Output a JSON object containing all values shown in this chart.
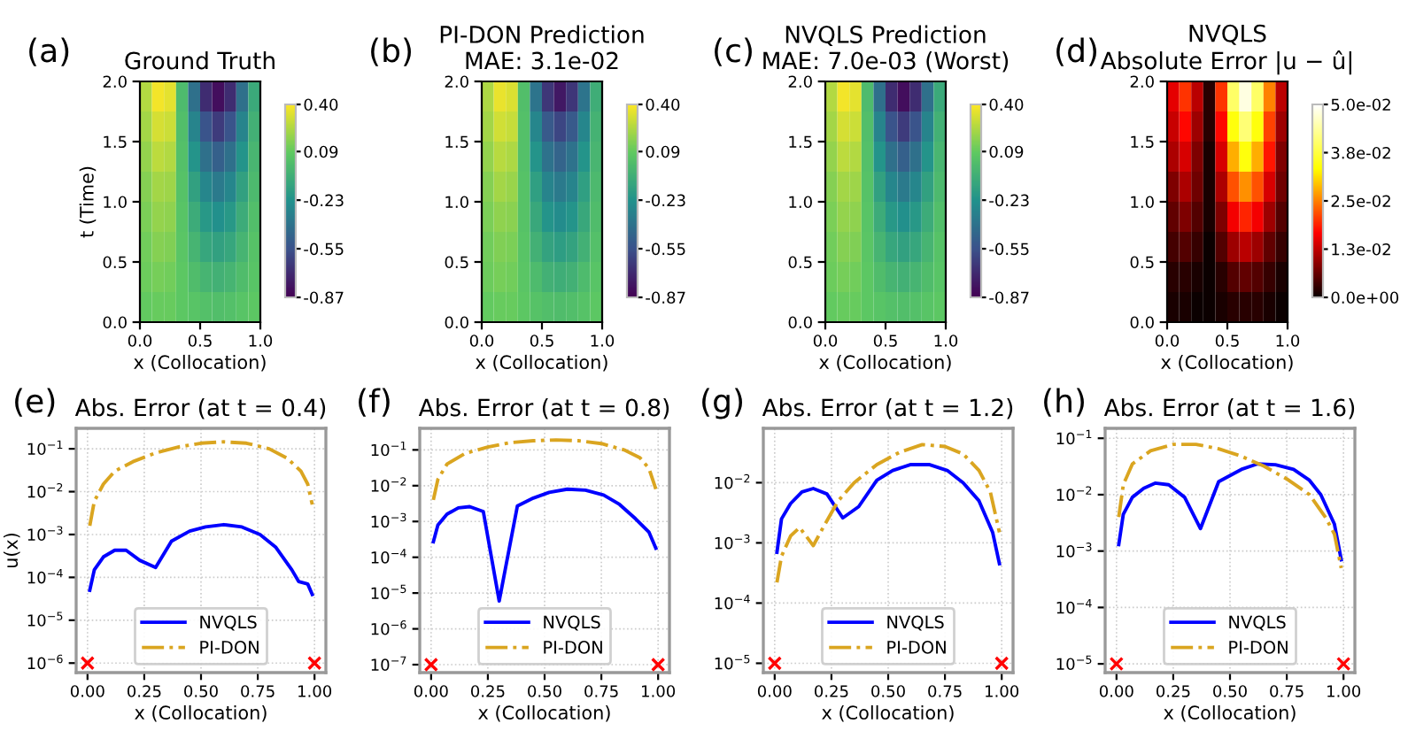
{
  "chart_data": [
    {
      "type": "heatmap",
      "title": "Ground Truth",
      "xlabel": "x (Collocation)",
      "ylabel": "t (Time)",
      "annotations": [
        "(a)"
      ],
      "colors": [
        "#440154",
        "#3b528b",
        "#21918c",
        "#5ec962",
        "#fde725"
      ],
      "x": [
        0.05,
        0.15,
        0.25,
        0.35,
        0.45,
        0.55,
        0.65,
        0.75,
        0.85,
        0.95
      ],
      "y": [
        1.875,
        1.625,
        1.375,
        1.125,
        0.875,
        0.625,
        0.375,
        0.125
      ],
      "cells": [
        [
          0.25,
          0.38,
          0.35,
          0.0,
          -0.4,
          -0.7,
          -0.82,
          -0.7,
          -0.4,
          -0.1
        ],
        [
          0.22,
          0.32,
          0.3,
          0.02,
          -0.3,
          -0.54,
          -0.64,
          -0.54,
          -0.3,
          -0.06
        ],
        [
          0.19,
          0.27,
          0.25,
          0.03,
          -0.22,
          -0.4,
          -0.48,
          -0.4,
          -0.22,
          -0.03
        ],
        [
          0.16,
          0.22,
          0.21,
          0.04,
          -0.15,
          -0.29,
          -0.35,
          -0.29,
          -0.15,
          -0.01
        ],
        [
          0.14,
          0.19,
          0.18,
          0.05,
          -0.09,
          -0.2,
          -0.24,
          -0.2,
          -0.09,
          0.02
        ],
        [
          0.12,
          0.16,
          0.15,
          0.06,
          -0.04,
          -0.12,
          -0.15,
          -0.12,
          -0.04,
          0.04
        ],
        [
          0.11,
          0.13,
          0.12,
          0.07,
          0.01,
          -0.04,
          -0.06,
          -0.04,
          0.01,
          0.05
        ],
        [
          0.09,
          0.1,
          0.1,
          0.07,
          0.05,
          0.03,
          0.02,
          0.03,
          0.05,
          0.07
        ]
      ],
      "xlim": [
        0,
        1
      ],
      "xticks": [
        {
          "value": 0,
          "label": "0.0"
        },
        {
          "value": 0.5,
          "label": "0.5"
        },
        {
          "value": 1,
          "label": "1.0"
        }
      ],
      "ylim": [
        0,
        2
      ],
      "yticks": [
        {
          "value": 0,
          "label": "0.0"
        },
        {
          "value": 0.5,
          "label": "0.5"
        },
        {
          "value": 1,
          "label": "1.0"
        },
        {
          "value": 1.5,
          "label": "1.5"
        },
        {
          "value": 2,
          "label": "2.0"
        }
      ],
      "clim": [
        -0.87,
        0.4
      ],
      "cticks": [
        {
          "value": -0.87,
          "label": "-0.87"
        },
        {
          "value": -0.55,
          "label": "-0.55"
        },
        {
          "value": -0.23,
          "label": "-0.23"
        },
        {
          "value": 0.09,
          "label": "0.09"
        },
        {
          "value": 0.4,
          "label": "0.40"
        }
      ]
    },
    {
      "type": "heatmap",
      "title": "PI-DON Prediction\nMAE: 3.1e-02",
      "xlabel": "x (Collocation)",
      "annotations": [
        "(b)"
      ],
      "colors": [
        "#440154",
        "#3b528b",
        "#21918c",
        "#5ec962",
        "#fde725"
      ],
      "x": [
        0.05,
        0.15,
        0.25,
        0.35,
        0.45,
        0.55,
        0.65,
        0.75,
        0.85,
        0.95
      ],
      "y": [
        1.875,
        1.625,
        1.375,
        1.125,
        0.875,
        0.625,
        0.375,
        0.125
      ],
      "cells": [
        [
          0.24,
          0.36,
          0.33,
          0.02,
          -0.38,
          -0.66,
          -0.78,
          -0.66,
          -0.38,
          -0.08
        ],
        [
          0.22,
          0.31,
          0.29,
          0.03,
          -0.29,
          -0.51,
          -0.6,
          -0.51,
          -0.29,
          -0.05
        ],
        [
          0.19,
          0.26,
          0.24,
          0.03,
          -0.22,
          -0.39,
          -0.46,
          -0.39,
          -0.22,
          -0.03
        ],
        [
          0.16,
          0.22,
          0.2,
          0.04,
          -0.16,
          -0.3,
          -0.35,
          -0.3,
          -0.16,
          -0.01
        ],
        [
          0.14,
          0.18,
          0.17,
          0.04,
          -0.11,
          -0.22,
          -0.26,
          -0.22,
          -0.11,
          0.01
        ],
        [
          0.12,
          0.15,
          0.14,
          0.05,
          -0.06,
          -0.14,
          -0.17,
          -0.14,
          -0.06,
          0.03
        ],
        [
          0.11,
          0.13,
          0.12,
          0.06,
          0.0,
          -0.06,
          -0.08,
          -0.06,
          0.0,
          0.05
        ],
        [
          0.09,
          0.1,
          0.1,
          0.07,
          0.04,
          0.02,
          0.01,
          0.02,
          0.04,
          0.07
        ]
      ],
      "xlim": [
        0,
        1
      ],
      "xticks": [
        {
          "value": 0,
          "label": "0.0"
        },
        {
          "value": 0.5,
          "label": "0.5"
        },
        {
          "value": 1,
          "label": "1.0"
        }
      ],
      "ylim": [
        0,
        2
      ],
      "yticks": [
        {
          "value": 0,
          "label": "0.0"
        },
        {
          "value": 0.5,
          "label": "0.5"
        },
        {
          "value": 1,
          "label": "1.0"
        },
        {
          "value": 1.5,
          "label": "1.5"
        },
        {
          "value": 2,
          "label": "2.0"
        }
      ],
      "clim": [
        -0.87,
        0.4
      ],
      "cticks": [
        {
          "value": -0.87,
          "label": "-0.87"
        },
        {
          "value": -0.55,
          "label": "-0.55"
        },
        {
          "value": -0.23,
          "label": "-0.23"
        },
        {
          "value": 0.09,
          "label": "0.09"
        },
        {
          "value": 0.4,
          "label": "0.40"
        }
      ]
    },
    {
      "type": "heatmap",
      "title": "NVQLS Prediction\nMAE: 7.0e-03 (Worst)",
      "xlabel": "x (Collocation)",
      "annotations": [
        "(c)"
      ],
      "colors": [
        "#440154",
        "#3b528b",
        "#21918c",
        "#5ec962",
        "#fde725"
      ],
      "x": [
        0.05,
        0.15,
        0.25,
        0.35,
        0.45,
        0.55,
        0.65,
        0.75,
        0.85,
        0.95
      ],
      "y": [
        1.875,
        1.625,
        1.375,
        1.125,
        0.875,
        0.625,
        0.375,
        0.125
      ],
      "cells": [
        [
          0.25,
          0.38,
          0.35,
          0.0,
          -0.4,
          -0.7,
          -0.82,
          -0.7,
          -0.4,
          -0.1
        ],
        [
          0.22,
          0.32,
          0.3,
          0.02,
          -0.3,
          -0.54,
          -0.64,
          -0.54,
          -0.3,
          -0.06
        ],
        [
          0.19,
          0.27,
          0.25,
          0.03,
          -0.22,
          -0.4,
          -0.48,
          -0.4,
          -0.22,
          -0.03
        ],
        [
          0.16,
          0.22,
          0.21,
          0.04,
          -0.15,
          -0.29,
          -0.35,
          -0.29,
          -0.15,
          -0.01
        ],
        [
          0.14,
          0.19,
          0.18,
          0.05,
          -0.09,
          -0.2,
          -0.24,
          -0.2,
          -0.09,
          0.02
        ],
        [
          0.12,
          0.16,
          0.15,
          0.06,
          -0.04,
          -0.12,
          -0.15,
          -0.12,
          -0.04,
          0.04
        ],
        [
          0.11,
          0.13,
          0.12,
          0.07,
          0.01,
          -0.04,
          -0.06,
          -0.04,
          0.01,
          0.05
        ],
        [
          0.09,
          0.1,
          0.1,
          0.07,
          0.05,
          0.03,
          0.02,
          0.03,
          0.05,
          0.07
        ]
      ],
      "xlim": [
        0,
        1
      ],
      "xticks": [
        {
          "value": 0,
          "label": "0.0"
        },
        {
          "value": 0.5,
          "label": "0.5"
        },
        {
          "value": 1,
          "label": "1.0"
        }
      ],
      "ylim": [
        0,
        2
      ],
      "yticks": [
        {
          "value": 0,
          "label": "0.0"
        },
        {
          "value": 0.5,
          "label": "0.5"
        },
        {
          "value": 1,
          "label": "1.0"
        },
        {
          "value": 1.5,
          "label": "1.5"
        },
        {
          "value": 2,
          "label": "2.0"
        }
      ],
      "clim": [
        -0.87,
        0.4
      ],
      "cticks": [
        {
          "value": -0.87,
          "label": "-0.87"
        },
        {
          "value": -0.55,
          "label": "-0.55"
        },
        {
          "value": -0.23,
          "label": "-0.23"
        },
        {
          "value": 0.09,
          "label": "0.09"
        },
        {
          "value": 0.4,
          "label": "0.40"
        }
      ]
    },
    {
      "type": "heatmap",
      "title": "NVQLS\nAbsolute Error |u − û|",
      "xlabel": "x (Collocation)",
      "annotations": [
        "(d)"
      ],
      "colors": [
        "#0b0000",
        "#ff0000",
        "#ffff00",
        "#ffffff"
      ],
      "x": [
        0.05,
        0.15,
        0.25,
        0.35,
        0.45,
        0.55,
        0.65,
        0.75,
        0.85,
        0.95
      ],
      "y": [
        1.875,
        1.625,
        1.375,
        1.125,
        0.875,
        0.625,
        0.375,
        0.125
      ],
      "cells": [
        [
          0.015,
          0.02,
          0.012,
          0.002,
          0.02,
          0.04,
          0.048,
          0.04,
          0.025,
          0.012
        ],
        [
          0.013,
          0.017,
          0.01,
          0.002,
          0.017,
          0.034,
          0.041,
          0.034,
          0.021,
          0.01
        ],
        [
          0.011,
          0.014,
          0.008,
          0.001,
          0.014,
          0.028,
          0.034,
          0.028,
          0.018,
          0.008
        ],
        [
          0.008,
          0.011,
          0.007,
          0.001,
          0.011,
          0.022,
          0.026,
          0.022,
          0.014,
          0.007
        ],
        [
          0.006,
          0.008,
          0.005,
          0.001,
          0.008,
          0.016,
          0.019,
          0.016,
          0.01,
          0.005
        ],
        [
          0.004,
          0.005,
          0.003,
          0.0,
          0.005,
          0.01,
          0.012,
          0.01,
          0.006,
          0.003
        ],
        [
          0.002,
          0.002,
          0.001,
          0.0,
          0.002,
          0.005,
          0.006,
          0.005,
          0.003,
          0.001
        ],
        [
          0.001,
          0.001,
          0.0,
          0.0,
          0.001,
          0.002,
          0.002,
          0.002,
          0.001,
          0.0
        ]
      ],
      "xlim": [
        0,
        1
      ],
      "xticks": [
        {
          "value": 0,
          "label": "0.0"
        },
        {
          "value": 0.5,
          "label": "0.5"
        },
        {
          "value": 1,
          "label": "1.0"
        }
      ],
      "ylim": [
        0,
        2
      ],
      "yticks": [
        {
          "value": 0,
          "label": "0.0"
        },
        {
          "value": 0.5,
          "label": "0.5"
        },
        {
          "value": 1,
          "label": "1.0"
        },
        {
          "value": 1.5,
          "label": "1.5"
        },
        {
          "value": 2,
          "label": "2.0"
        }
      ],
      "clim": [
        0,
        0.05
      ],
      "cticks": [
        {
          "value": 0,
          "label": "0.0e+00"
        },
        {
          "value": 0.0125,
          "label": "1.3e-02"
        },
        {
          "value": 0.025,
          "label": "2.5e-02"
        },
        {
          "value": 0.0375,
          "label": "3.8e-02"
        },
        {
          "value": 0.05,
          "label": "5.0e-02"
        }
      ]
    },
    {
      "type": "line",
      "title": "Abs. Error (at t = 0.4)",
      "xlabel": "x (Collocation)",
      "ylabel": "u(x)",
      "annotations": [
        "(e)"
      ],
      "log": "y",
      "grid": true,
      "legend": "bottom",
      "xlim": [
        -0.05,
        1.05
      ],
      "xticks": [
        {
          "value": 0,
          "label": "0.00"
        },
        {
          "value": 0.25,
          "label": "0.25"
        },
        {
          "value": 0.5,
          "label": "0.50"
        },
        {
          "value": 0.75,
          "label": "0.75"
        },
        {
          "value": 1,
          "label": "1.00"
        }
      ],
      "ylim": [
        6e-07,
        0.3
      ],
      "yticks": [
        {
          "value": 1e-06,
          "label": "10$^{−6}$"
        },
        {
          "value": 1e-05,
          "label": "10$^{−5}$"
        },
        {
          "value": 0.0001,
          "label": "10$^{−4}$"
        },
        {
          "value": 0.001,
          "label": "10$^{−3}$"
        },
        {
          "value": 0.01,
          "label": "10$^{−2}$"
        },
        {
          "value": 0.1,
          "label": "10$^{−1}$"
        }
      ],
      "series": [
        {
          "name": "NVQLS",
          "color": "#0000ff",
          "line_style": "solid",
          "x": [
            0.01,
            0.03,
            0.07,
            0.12,
            0.17,
            0.23,
            0.3,
            0.37,
            0.45,
            0.52,
            0.6,
            0.68,
            0.76,
            0.83,
            0.9,
            0.93,
            0.97,
            0.99
          ],
          "values": [
            5e-05,
            0.00015,
            0.0003,
            0.00043,
            0.00043,
            0.00025,
            0.00017,
            0.0007,
            0.0012,
            0.0015,
            0.0017,
            0.0015,
            0.001,
            0.0005,
            0.00015,
            8e-05,
            7e-05,
            4e-05
          ]
        },
        {
          "name": "PI-DON",
          "color": "#daa520",
          "line_style": "dashdot",
          "x": [
            0.01,
            0.03,
            0.07,
            0.12,
            0.2,
            0.3,
            0.4,
            0.5,
            0.6,
            0.7,
            0.8,
            0.88,
            0.94,
            0.97,
            0.99
          ],
          "values": [
            0.0016,
            0.006,
            0.015,
            0.03,
            0.05,
            0.08,
            0.11,
            0.135,
            0.145,
            0.135,
            0.1,
            0.06,
            0.03,
            0.015,
            0.005
          ]
        },
        {
          "type": "scatter",
          "color": "#ff0000",
          "marker": "cross",
          "x": [
            0,
            1
          ],
          "values": [
            1e-06,
            1e-06
          ]
        }
      ]
    },
    {
      "type": "line",
      "title": "Abs. Error (at t = 0.8)",
      "xlabel": "x (Collocation)",
      "annotations": [
        "(f)"
      ],
      "log": "y",
      "grid": true,
      "legend": "bottom",
      "xlim": [
        -0.05,
        1.05
      ],
      "xticks": [
        {
          "value": 0,
          "label": "0.00"
        },
        {
          "value": 0.25,
          "label": "0.25"
        },
        {
          "value": 0.5,
          "label": "0.50"
        },
        {
          "value": 0.75,
          "label": "0.75"
        },
        {
          "value": 1,
          "label": "1.00"
        }
      ],
      "ylim": [
        6e-08,
        0.4
      ],
      "yticks": [
        {
          "value": 1e-07,
          "label": "10$^{−7}$"
        },
        {
          "value": 1e-06,
          "label": "10$^{−6}$"
        },
        {
          "value": 1e-05,
          "label": "10$^{−5}$"
        },
        {
          "value": 0.0001,
          "label": "10$^{−4}$"
        },
        {
          "value": 0.001,
          "label": "10$^{−3}$"
        },
        {
          "value": 0.01,
          "label": "10$^{−2}$"
        },
        {
          "value": 0.1,
          "label": "10$^{−1}$"
        }
      ],
      "series": [
        {
          "name": "NVQLS",
          "color": "#0000ff",
          "line_style": "solid",
          "x": [
            0.01,
            0.03,
            0.07,
            0.12,
            0.17,
            0.23,
            0.3,
            0.38,
            0.45,
            0.52,
            0.6,
            0.68,
            0.76,
            0.83,
            0.9,
            0.96,
            0.99
          ],
          "values": [
            0.00027,
            0.0008,
            0.0016,
            0.0024,
            0.0026,
            0.0019,
            6e-06,
            0.0027,
            0.0045,
            0.0065,
            0.008,
            0.0075,
            0.0055,
            0.003,
            0.0012,
            0.0005,
            0.00018
          ]
        },
        {
          "name": "PI-DON",
          "color": "#daa520",
          "line_style": "dashdot",
          "x": [
            0.01,
            0.03,
            0.07,
            0.15,
            0.25,
            0.35,
            0.45,
            0.55,
            0.65,
            0.75,
            0.85,
            0.92,
            0.96,
            0.99
          ],
          "values": [
            0.004,
            0.015,
            0.04,
            0.08,
            0.12,
            0.16,
            0.18,
            0.19,
            0.18,
            0.15,
            0.1,
            0.06,
            0.03,
            0.008
          ]
        },
        {
          "type": "scatter",
          "color": "#ff0000",
          "marker": "cross",
          "x": [
            0,
            1
          ],
          "values": [
            1e-07,
            1e-07
          ]
        }
      ]
    },
    {
      "type": "line",
      "title": "Abs. Error (at t = 1.2)",
      "xlabel": "x (Collocation)",
      "annotations": [
        "(g)"
      ],
      "log": "y",
      "grid": true,
      "legend": "bottom",
      "xlim": [
        -0.05,
        1.05
      ],
      "xticks": [
        {
          "value": 0,
          "label": "0.00"
        },
        {
          "value": 0.25,
          "label": "0.25"
        },
        {
          "value": 0.5,
          "label": "0.50"
        },
        {
          "value": 0.75,
          "label": "0.75"
        },
        {
          "value": 1,
          "label": "1.00"
        }
      ],
      "ylim": [
        7e-06,
        0.08
      ],
      "yticks": [
        {
          "value": 1e-05,
          "label": "10$^{−5}$"
        },
        {
          "value": 0.0001,
          "label": "10$^{−4}$"
        },
        {
          "value": 0.001,
          "label": "10$^{−3}$"
        },
        {
          "value": 0.01,
          "label": "10$^{−2}$"
        }
      ],
      "series": [
        {
          "name": "NVQLS",
          "color": "#0000ff",
          "line_style": "solid",
          "x": [
            0.01,
            0.03,
            0.07,
            0.12,
            0.17,
            0.23,
            0.3,
            0.37,
            0.45,
            0.52,
            0.6,
            0.68,
            0.76,
            0.83,
            0.9,
            0.96,
            0.99
          ],
          "values": [
            0.0007,
            0.0025,
            0.0045,
            0.007,
            0.008,
            0.0065,
            0.0026,
            0.004,
            0.011,
            0.016,
            0.02,
            0.02,
            0.016,
            0.01,
            0.005,
            0.0015,
            0.00045
          ]
        },
        {
          "name": "PI-DON",
          "color": "#daa520",
          "line_style": "dashdot",
          "x": [
            0.01,
            0.03,
            0.07,
            0.11,
            0.17,
            0.22,
            0.28,
            0.35,
            0.45,
            0.55,
            0.65,
            0.75,
            0.83,
            0.9,
            0.95,
            0.99
          ],
          "values": [
            0.00022,
            0.0006,
            0.0013,
            0.0018,
            0.0009,
            0.002,
            0.005,
            0.01,
            0.02,
            0.032,
            0.043,
            0.04,
            0.03,
            0.016,
            0.007,
            0.0015
          ]
        },
        {
          "type": "scatter",
          "color": "#ff0000",
          "marker": "cross",
          "x": [
            0,
            1
          ],
          "values": [
            1e-05,
            1e-05
          ]
        }
      ]
    },
    {
      "type": "line",
      "title": "Abs. Error (at t = 1.6)",
      "xlabel": "x (Collocation)",
      "annotations": [
        "(h)"
      ],
      "log": "y",
      "grid": true,
      "legend": "bottom",
      "xlim": [
        -0.05,
        1.05
      ],
      "xticks": [
        {
          "value": 0,
          "label": "0.00"
        },
        {
          "value": 0.25,
          "label": "0.25"
        },
        {
          "value": 0.5,
          "label": "0.50"
        },
        {
          "value": 0.75,
          "label": "0.75"
        },
        {
          "value": 1,
          "label": "1.00"
        }
      ],
      "ylim": [
        7e-06,
        0.15
      ],
      "yticks": [
        {
          "value": 1e-05,
          "label": "10$^{−5}$"
        },
        {
          "value": 0.0001,
          "label": "10$^{−4}$"
        },
        {
          "value": 0.001,
          "label": "10$^{−3}$"
        },
        {
          "value": 0.01,
          "label": "10$^{−2}$"
        },
        {
          "value": 0.1,
          "label": "10$^{−1}$"
        }
      ],
      "series": [
        {
          "name": "NVQLS",
          "color": "#0000ff",
          "line_style": "solid",
          "x": [
            0.01,
            0.03,
            0.07,
            0.12,
            0.17,
            0.23,
            0.3,
            0.37,
            0.45,
            0.55,
            0.62,
            0.7,
            0.78,
            0.85,
            0.9,
            0.96,
            0.99
          ],
          "values": [
            0.0013,
            0.0045,
            0.009,
            0.013,
            0.016,
            0.015,
            0.009,
            0.0025,
            0.017,
            0.028,
            0.035,
            0.034,
            0.028,
            0.018,
            0.01,
            0.003,
            0.0007
          ]
        },
        {
          "name": "PI-DON",
          "color": "#daa520",
          "line_style": "dashdot",
          "x": [
            0.01,
            0.03,
            0.07,
            0.15,
            0.25,
            0.35,
            0.45,
            0.55,
            0.65,
            0.75,
            0.85,
            0.92,
            0.96,
            0.99
          ],
          "values": [
            0.004,
            0.015,
            0.035,
            0.06,
            0.078,
            0.078,
            0.065,
            0.048,
            0.032,
            0.019,
            0.01,
            0.004,
            0.002,
            0.0005
          ]
        },
        {
          "type": "scatter",
          "color": "#ff0000",
          "marker": "cross",
          "x": [
            0,
            1
          ],
          "values": [
            1e-05,
            1e-05
          ]
        }
      ]
    }
  ]
}
